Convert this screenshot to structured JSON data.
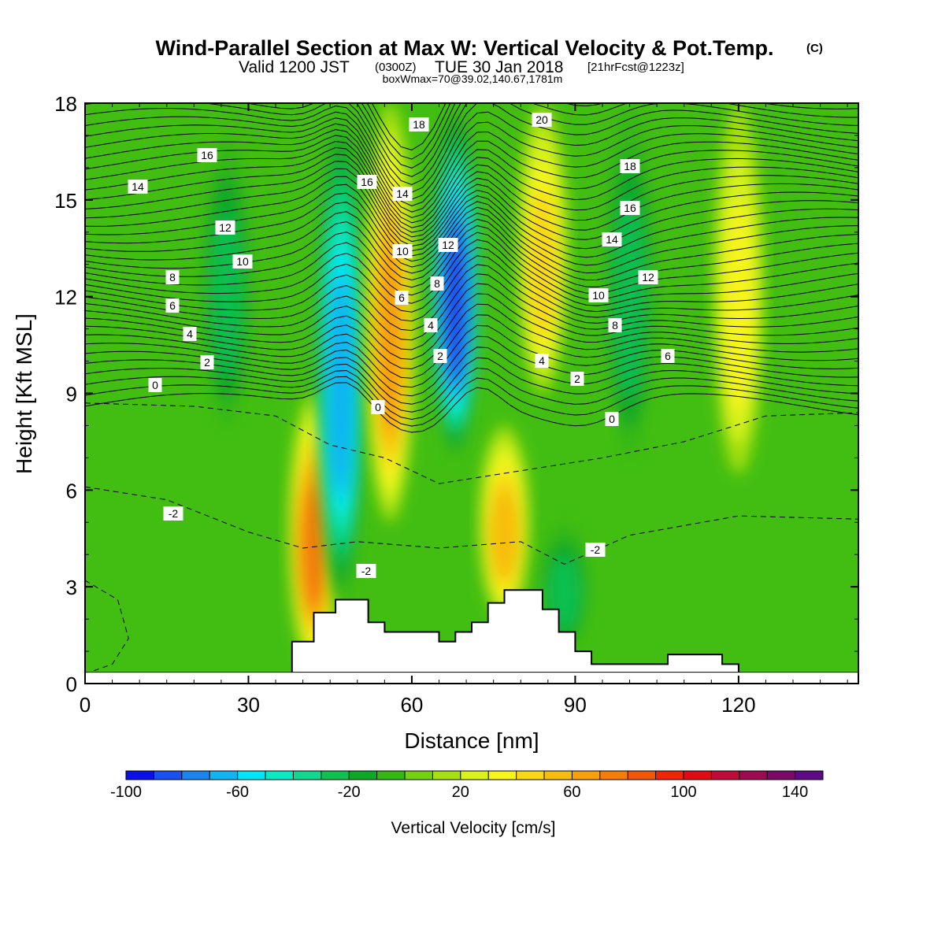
{
  "header": {
    "title": "Wind-Parallel Section at Max W: Vertical Velocity & Pot.Temp.",
    "title_mark": "(C)",
    "sub_valid": "Valid 1200 JST",
    "sub_zulu": "(0300Z)",
    "sub_date": "TUE 30 Jan 2018",
    "sub_fcst": "[21hrFcst@1223z]",
    "boxline": "boxWmax=70@39.02,140.67,1781m"
  },
  "chart_data": {
    "type": "heatmap",
    "xlabel": "Distance [nm]",
    "ylabel": "Height [Kft MSL]",
    "xlim": [
      0,
      142
    ],
    "ylim": [
      0,
      18
    ],
    "x_ticks": [
      0,
      30,
      60,
      90,
      120
    ],
    "y_ticks": [
      0,
      3,
      6,
      9,
      12,
      15,
      18
    ],
    "x_tick_labels": [
      "0",
      "30",
      "60",
      "90",
      "120"
    ],
    "y_tick_labels": [
      "0",
      "3",
      "6",
      "9",
      "12",
      "15",
      "18"
    ],
    "grid": false,
    "colorbar": {
      "label": "Vertical Velocity [cm/s]",
      "min": -100,
      "max": 150,
      "step": 10,
      "tick_values": [
        -100,
        -60,
        -20,
        20,
        60,
        100,
        140
      ],
      "tick_labels": [
        "-100",
        "-60",
        "-20",
        "20",
        "60",
        "100",
        "140"
      ],
      "colors": [
        "#0a10e8",
        "#1a50f0",
        "#1c84ee",
        "#10b4f0",
        "#00e6f6",
        "#0be8c4",
        "#10d890",
        "#10c050",
        "#0ea828",
        "#36b814",
        "#74d010",
        "#a6e010",
        "#d8f21a",
        "#f6f41a",
        "#f8d814",
        "#f6bc0e",
        "#f6a00a",
        "#f47e08",
        "#f05808",
        "#ee2606",
        "#e20a14",
        "#c00a3a",
        "#9c0a52",
        "#7c0868",
        "#5c0a86"
      ]
    },
    "terrain_kft": [
      [
        0,
        0
      ],
      [
        38,
        0
      ],
      [
        38,
        1.3
      ],
      [
        42,
        1.3
      ],
      [
        42,
        2.2
      ],
      [
        46,
        2.2
      ],
      [
        46,
        2.6
      ],
      [
        52,
        2.6
      ],
      [
        52,
        1.9
      ],
      [
        55,
        1.9
      ],
      [
        55,
        1.6
      ],
      [
        65,
        1.6
      ],
      [
        65,
        1.3
      ],
      [
        68,
        1.3
      ],
      [
        68,
        1.6
      ],
      [
        71,
        1.6
      ],
      [
        71,
        1.9
      ],
      [
        74,
        1.9
      ],
      [
        74,
        2.5
      ],
      [
        77,
        2.5
      ],
      [
        77,
        2.9
      ],
      [
        84,
        2.9
      ],
      [
        84,
        2.3
      ],
      [
        87,
        2.3
      ],
      [
        87,
        1.6
      ],
      [
        90,
        1.6
      ],
      [
        90,
        1.0
      ],
      [
        93,
        1.0
      ],
      [
        93,
        0.6
      ],
      [
        107,
        0.6
      ],
      [
        107,
        0.9
      ],
      [
        117,
        0.9
      ],
      [
        117,
        0.6
      ],
      [
        120,
        0.6
      ],
      [
        120,
        0
      ],
      [
        142,
        0
      ]
    ],
    "potential_temperature_contours_c": [
      -2,
      0,
      2,
      4,
      6,
      8,
      10,
      12,
      14,
      16,
      18,
      20
    ],
    "contour_labels": [
      "14",
      "16",
      "12",
      "10",
      "8",
      "6",
      "4",
      "2",
      "0",
      "-2",
      "16",
      "18",
      "14",
      "10",
      "6",
      "4",
      "2",
      "0",
      "-2",
      "12",
      "8",
      "20",
      "18",
      "16",
      "14",
      "12",
      "10",
      "8",
      "4",
      "2",
      "0",
      "6",
      "-2"
    ],
    "vertical_velocity_features": [
      {
        "x_nm": 42,
        "z_kft_range": [
          0.5,
          9
        ],
        "w_cms": 70,
        "sense": "updraft"
      },
      {
        "x_nm": 47,
        "z_kft_range": [
          2.5,
          18
        ],
        "w_cms": -70,
        "sense": "downdraft"
      },
      {
        "x_nm": 56,
        "z_kft_range": [
          5,
          18
        ],
        "w_cms": 60,
        "sense": "updraft"
      },
      {
        "x_nm": 68,
        "z_kft_range": [
          7,
          18
        ],
        "w_cms": -90,
        "sense": "downdraft"
      },
      {
        "x_nm": 77,
        "z_kft_range": [
          2,
          8
        ],
        "w_cms": 50,
        "sense": "updraft"
      },
      {
        "x_nm": 88,
        "z_kft_range": [
          1,
          5
        ],
        "w_cms": -30,
        "sense": "downdraft"
      },
      {
        "x_nm": 84,
        "z_kft_range": [
          9,
          18
        ],
        "w_cms": 40,
        "sense": "updraft"
      },
      {
        "x_nm": 100,
        "z_kft_range": [
          7,
          18
        ],
        "w_cms": -30,
        "sense": "downdraft"
      },
      {
        "x_nm": 120,
        "z_kft_range": [
          6.5,
          18
        ],
        "w_cms": 30,
        "sense": "updraft"
      },
      {
        "x_nm": 26,
        "z_kft_range": [
          8,
          17
        ],
        "w_cms": -25,
        "sense": "downdraft"
      }
    ]
  }
}
